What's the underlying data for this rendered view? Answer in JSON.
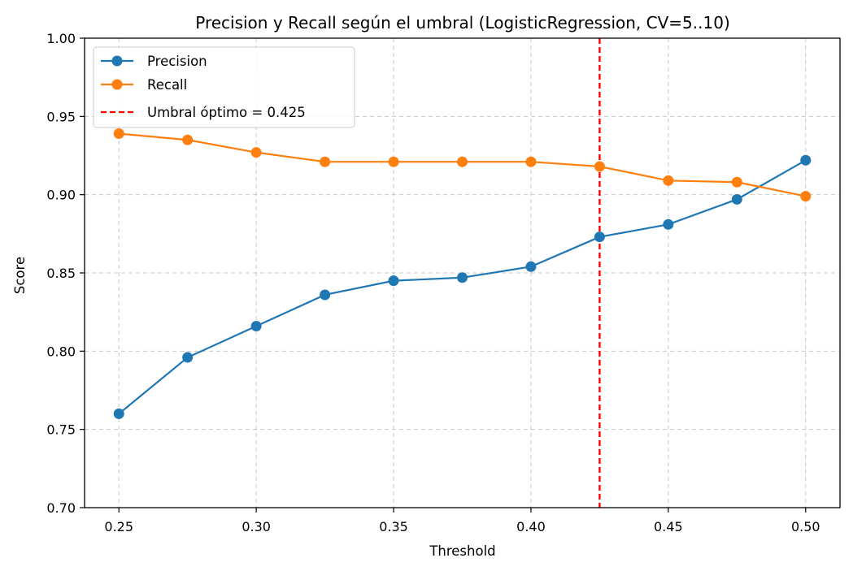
{
  "chart_data": {
    "type": "line",
    "title": "Precision y Recall según el umbral (LogisticRegression, CV=5..10)",
    "xlabel": "Threshold",
    "ylabel": "Score",
    "xlim": [
      0.2375,
      0.5125
    ],
    "ylim": [
      0.7,
      1.0
    ],
    "xticks": [
      0.25,
      0.3,
      0.35,
      0.4,
      0.45,
      0.5
    ],
    "xtick_labels": [
      "0.25",
      "0.30",
      "0.35",
      "0.40",
      "0.45",
      "0.50"
    ],
    "yticks": [
      0.7,
      0.75,
      0.8,
      0.85,
      0.9,
      0.95,
      1.0
    ],
    "ytick_labels": [
      "0.70",
      "0.75",
      "0.80",
      "0.85",
      "0.90",
      "0.95",
      "1.00"
    ],
    "grid": true,
    "legend_position": "top-left",
    "x": [
      0.25,
      0.275,
      0.3,
      0.325,
      0.35,
      0.375,
      0.4,
      0.425,
      0.45,
      0.475,
      0.5
    ],
    "series": [
      {
        "name": "Precision",
        "color": "#1f77b4",
        "values": [
          0.76,
          0.796,
          0.816,
          0.836,
          0.845,
          0.847,
          0.854,
          0.873,
          0.881,
          0.897,
          0.922
        ]
      },
      {
        "name": "Recall",
        "color": "#ff7f0e",
        "values": [
          0.939,
          0.935,
          0.927,
          0.921,
          0.921,
          0.921,
          0.921,
          0.918,
          0.909,
          0.908,
          0.899
        ]
      }
    ],
    "threshold_line": {
      "label": "Umbral óptimo = 0.425",
      "x": 0.425,
      "color": "#ff0000"
    }
  }
}
